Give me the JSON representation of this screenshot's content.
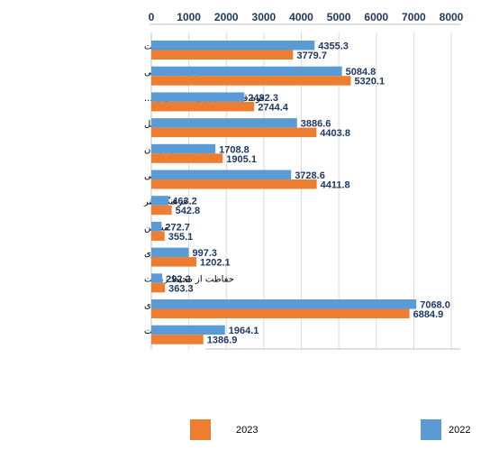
{
  "chart_data": {
    "type": "bar",
    "orientation": "horizontal",
    "categories": [
      "خدمات عمومی دولت",
      "دفاع و امنیت ملی",
      "قوه قضائیه، نیروی انتظامی و ...",
      "تحصیل",
      "بهداشت و درمان",
      "تامین اجتماعی",
      "فرهنگ، هنر",
      "مسکن",
      "کشاورزی",
      "حفاظت از محیط زیست",
      "فعالیت اقتصادی",
      "خدمات"
    ],
    "series": [
      {
        "name": "2022",
        "color": "#5b9bd5",
        "values": [
          4355.3,
          5084.8,
          2482.3,
          3886.6,
          1708.8,
          3728.6,
          463.2,
          272.7,
          997.3,
          292.2,
          7068.0,
          1964.1
        ],
        "labels": [
          "4355.3",
          "5084.8",
          "2482.3",
          "3886.6",
          "1708.8",
          "3728.6",
          "463.2",
          "272.7",
          "997.3",
          "292.2",
          "7068.0",
          "1964.1"
        ]
      },
      {
        "name": "2023",
        "color": "#ed7d31",
        "values": [
          3779.7,
          5320.1,
          2744.4,
          4403.8,
          1905.1,
          4411.8,
          542.8,
          355.1,
          1202.1,
          363.3,
          6884.9,
          1386.9
        ],
        "labels": [
          "3779.7",
          "5320.1",
          "2744.4",
          "4403.8",
          "1905.1",
          "4411.8",
          "542.8",
          "355.1",
          "1202.1",
          "363.3",
          "6884.9",
          "1386.9"
        ]
      }
    ],
    "xlim": [
      0,
      8000
    ],
    "x_ticks": [
      "0",
      "1000",
      "2000",
      "3000",
      "4000",
      "5000",
      "6000",
      "7000",
      "8000"
    ],
    "x_tick_values": [
      0,
      1000,
      2000,
      3000,
      4000,
      5000,
      6000,
      7000,
      8000
    ],
    "x_axis_position": "top",
    "grid": true,
    "legend_position": "bottom",
    "title": "",
    "xlabel": "",
    "ylabel": ""
  }
}
